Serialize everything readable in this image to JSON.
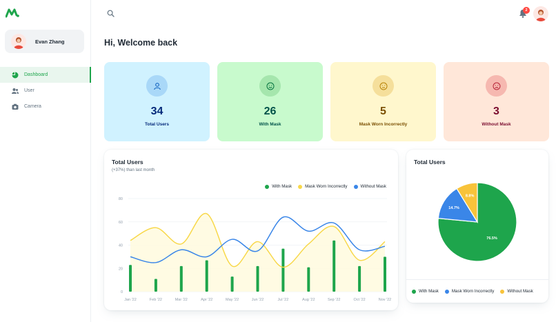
{
  "user": {
    "name": "Evan Zhang"
  },
  "nav": [
    {
      "label": "Dashboard",
      "icon": "pie-chart-icon",
      "active": true
    },
    {
      "label": "User",
      "icon": "users-icon",
      "active": false
    },
    {
      "label": "Camera",
      "icon": "camera-icon",
      "active": false
    }
  ],
  "notifications": {
    "count": "2"
  },
  "welcome": "Hi, Welcome back",
  "stats": [
    {
      "value": "34",
      "label": "Total Users",
      "bg": "#d0f2ff",
      "iconBg": "#a9d8f8",
      "color": "#04297a",
      "icon": "user-icon"
    },
    {
      "value": "26",
      "label": "With Mask",
      "bg": "#c8facd",
      "iconBg": "#a5e6ad",
      "color": "#005249",
      "icon": "smile-icon"
    },
    {
      "value": "5",
      "label": "Mask Worn Incorrectly",
      "bg": "#fff7cd",
      "iconBg": "#f5df9b",
      "color": "#7a4f01",
      "icon": "neutral-face-icon"
    },
    {
      "value": "3",
      "label": "Without Mask",
      "bg": "#ffe7d9",
      "iconBg": "#f6b8b0",
      "color": "#7a0c2e",
      "icon": "frown-icon"
    }
  ],
  "line_card": {
    "title": "Total Users",
    "subtitle": "(+37%) than last month"
  },
  "pie_card": {
    "title": "Total Users"
  },
  "colors": {
    "green": "#1ea54c",
    "yellow": "#f8d84a",
    "blue": "#3a86e8"
  },
  "chart_data": [
    {
      "type": "bar+line+area",
      "x": [
        "Jan '22",
        "Feb '22",
        "Mar '22",
        "Apr '22",
        "May '22",
        "Jun '22",
        "Jul '22",
        "Aug '22",
        "Sep '22",
        "Oct '22",
        "Nov '22"
      ],
      "ylim": [
        0,
        80
      ],
      "yticks": [
        0,
        20,
        40,
        60,
        80
      ],
      "series": [
        {
          "name": "With Mask",
          "type": "bar",
          "values": [
            23,
            11,
            22,
            27,
            13,
            22,
            37,
            21,
            44,
            22,
            30
          ]
        },
        {
          "name": "Mask Worn Incorrectly",
          "type": "area",
          "values": [
            44,
            55,
            41,
            67,
            22,
            43,
            21,
            41,
            56,
            27,
            43
          ]
        },
        {
          "name": "Without Mask",
          "type": "line",
          "values": [
            30,
            25,
            36,
            30,
            45,
            35,
            64,
            52,
            59,
            36,
            39
          ]
        }
      ]
    },
    {
      "type": "pie",
      "labels": [
        "With Mask",
        "Mask Worn Incorrectly",
        "Without Mask"
      ],
      "values": [
        76.5,
        14.7,
        8.8
      ],
      "value_labels": [
        "76.5%",
        "14.7%",
        "8.8%"
      ]
    }
  ]
}
